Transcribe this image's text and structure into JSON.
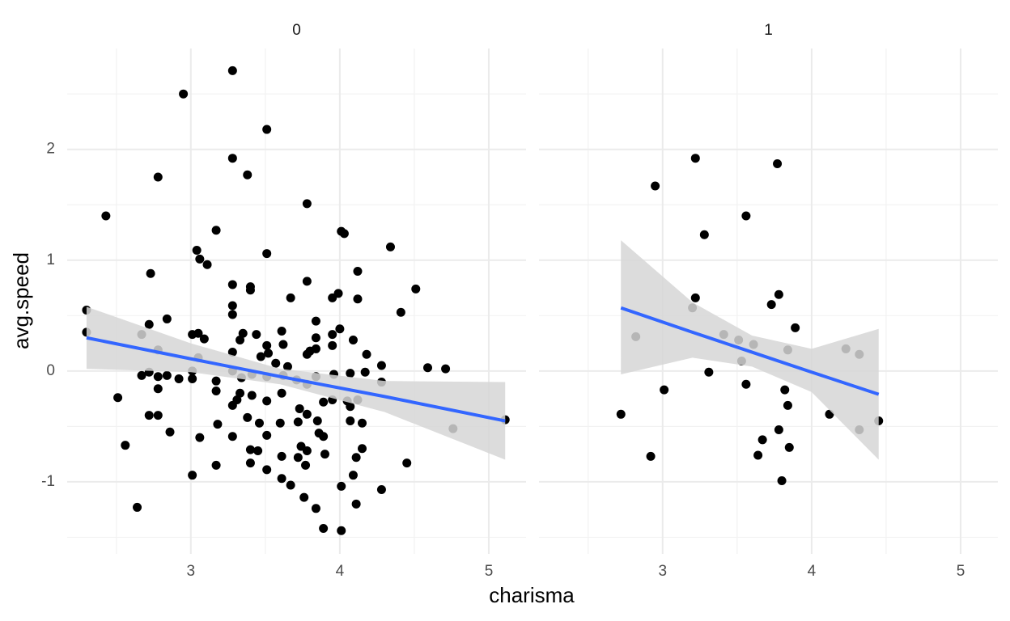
{
  "chart_data": {
    "type": "scatter",
    "x_label": "charisma",
    "y_label": "avg.speed",
    "xlim": [
      2.17,
      5.25
    ],
    "ylim": [
      -1.65,
      2.91
    ],
    "xticks": [
      3,
      4,
      5
    ],
    "yticks": [
      -1,
      0,
      1,
      2
    ],
    "minor_xticks": [
      2.5,
      3.5,
      4.5
    ],
    "minor_yticks": [
      -1.5,
      -0.5,
      0.5,
      1.5,
      2.5
    ],
    "grid": true,
    "color": "#000000",
    "fit_color": "#3366ff",
    "band_color": "#d6d6d6",
    "panels": [
      {
        "title": "0",
        "x": [
          3.28,
          2.95,
          3.51,
          3.28,
          3.38,
          2.78,
          3.78,
          2.43,
          4.01,
          4.03,
          3.17,
          4.34,
          3.04,
          3.51,
          3.06,
          3.11,
          4.12,
          2.73,
          3.28,
          3.4,
          3.4,
          3.78,
          4.51,
          3.99,
          3.95,
          3.67,
          4.12,
          3.28,
          3.28,
          2.3,
          4.41,
          2.84,
          3.84,
          2.3,
          2.72,
          3.05,
          3.01,
          3.09,
          3.35,
          3.44,
          3.33,
          3.61,
          2.67,
          4.0,
          3.95,
          4.09,
          3.84,
          3.95,
          3.84,
          3.51,
          3.62,
          3.52,
          3.78,
          3.8,
          4.18,
          3.28,
          3.47,
          2.78,
          3.05,
          3.57,
          3.65,
          4.28,
          4.59,
          4.71,
          3.01,
          2.72,
          2.67,
          2.84,
          2.78,
          2.92,
          3.28,
          3.41,
          3.34,
          3.51,
          3.62,
          3.71,
          3.84,
          3.96,
          4.07,
          4.17,
          4.28,
          3.01,
          3.78,
          2.78,
          3.17,
          3.17,
          3.61,
          3.33,
          2.51,
          3.31,
          3.51,
          3.28,
          3.41,
          3.73,
          3.78,
          3.89,
          3.95,
          4.05,
          4.12,
          4.07,
          2.72,
          2.78,
          3.38,
          3.46,
          3.6,
          3.72,
          3.85,
          4.07,
          4.15,
          3.86,
          3.89,
          4.76,
          5.11,
          3.18,
          3.06,
          2.86,
          3.28,
          3.51,
          2.56,
          3.4,
          3.45,
          3.61,
          3.74,
          3.78,
          3.72,
          3.9,
          4.15,
          4.11,
          3.77,
          3.4,
          3.17,
          3.51,
          4.45,
          4.09,
          3.01,
          3.67,
          4.01,
          4.28,
          3.76,
          4.11,
          2.64,
          3.84,
          3.89,
          4.01,
          3.61
        ],
        "y": [
          2.71,
          2.5,
          2.18,
          1.92,
          1.77,
          1.75,
          1.51,
          1.4,
          1.26,
          1.24,
          1.27,
          1.12,
          1.09,
          1.06,
          1.01,
          0.96,
          0.9,
          0.88,
          0.78,
          0.76,
          0.73,
          0.81,
          0.74,
          0.7,
          0.66,
          0.66,
          0.65,
          0.59,
          0.51,
          0.55,
          0.53,
          0.47,
          0.45,
          0.35,
          0.42,
          0.34,
          0.33,
          0.29,
          0.34,
          0.33,
          0.28,
          0.36,
          0.33,
          0.38,
          0.33,
          0.28,
          0.3,
          0.23,
          0.2,
          0.23,
          0.24,
          0.16,
          0.15,
          0.18,
          0.15,
          0.17,
          0.13,
          0.19,
          0.12,
          0.07,
          0.04,
          0.05,
          0.03,
          0.02,
          0.0,
          -0.01,
          -0.04,
          -0.04,
          -0.05,
          -0.07,
          0.0,
          -0.03,
          -0.06,
          -0.05,
          -0.04,
          -0.08,
          -0.05,
          -0.03,
          -0.02,
          -0.01,
          -0.1,
          -0.07,
          -0.12,
          -0.16,
          -0.09,
          -0.18,
          -0.2,
          -0.2,
          -0.24,
          -0.26,
          -0.27,
          -0.31,
          -0.22,
          -0.34,
          -0.39,
          -0.28,
          -0.26,
          -0.27,
          -0.26,
          -0.32,
          -0.4,
          -0.4,
          -0.42,
          -0.47,
          -0.47,
          -0.46,
          -0.45,
          -0.45,
          -0.47,
          -0.56,
          -0.59,
          -0.52,
          -0.44,
          -0.48,
          -0.6,
          -0.55,
          -0.59,
          -0.58,
          -0.67,
          -0.71,
          -0.72,
          -0.77,
          -0.68,
          -0.72,
          -0.78,
          -0.75,
          -0.7,
          -0.78,
          -0.85,
          -0.83,
          -0.85,
          -0.89,
          -0.83,
          -0.94,
          -0.94,
          -1.03,
          -1.04,
          -1.07,
          -1.14,
          -1.2,
          -1.23,
          -1.24,
          -1.42,
          -1.44,
          -0.97
        ],
        "fit": {
          "x": [
            2.3,
            3.0,
            3.6,
            4.3,
            5.11
          ],
          "y": [
            0.3,
            0.11,
            -0.05,
            -0.23,
            -0.45
          ],
          "lower": [
            0.02,
            -0.01,
            -0.12,
            -0.37,
            -0.8
          ],
          "upper": [
            0.58,
            0.25,
            0.02,
            -0.09,
            -0.1
          ]
        }
      },
      {
        "title": "1",
        "x": [
          3.22,
          3.77,
          2.95,
          3.56,
          3.28,
          3.22,
          3.78,
          3.73,
          3.2,
          3.89,
          2.82,
          3.41,
          3.51,
          3.61,
          3.84,
          4.23,
          4.32,
          3.53,
          3.31,
          3.56,
          3.01,
          3.82,
          3.84,
          2.72,
          4.12,
          4.45,
          4.32,
          3.78,
          3.67,
          3.85,
          3.64,
          2.92,
          3.8
        ],
        "y": [
          1.92,
          1.87,
          1.67,
          1.4,
          1.23,
          0.66,
          0.69,
          0.6,
          0.57,
          0.39,
          0.31,
          0.33,
          0.28,
          0.24,
          0.19,
          0.2,
          0.15,
          0.09,
          -0.01,
          -0.12,
          -0.17,
          -0.17,
          -0.31,
          -0.39,
          -0.39,
          -0.45,
          -0.53,
          -0.53,
          -0.62,
          -0.69,
          -0.76,
          -0.77,
          -0.99
        ],
        "fit": {
          "x": [
            2.72,
            3.2,
            3.6,
            4.0,
            4.45
          ],
          "y": [
            0.57,
            0.35,
            0.17,
            -0.01,
            -0.21
          ],
          "lower": [
            -0.03,
            0.12,
            0.04,
            -0.19,
            -0.8
          ],
          "upper": [
            1.18,
            0.62,
            0.32,
            0.2,
            0.38
          ]
        }
      }
    ]
  }
}
